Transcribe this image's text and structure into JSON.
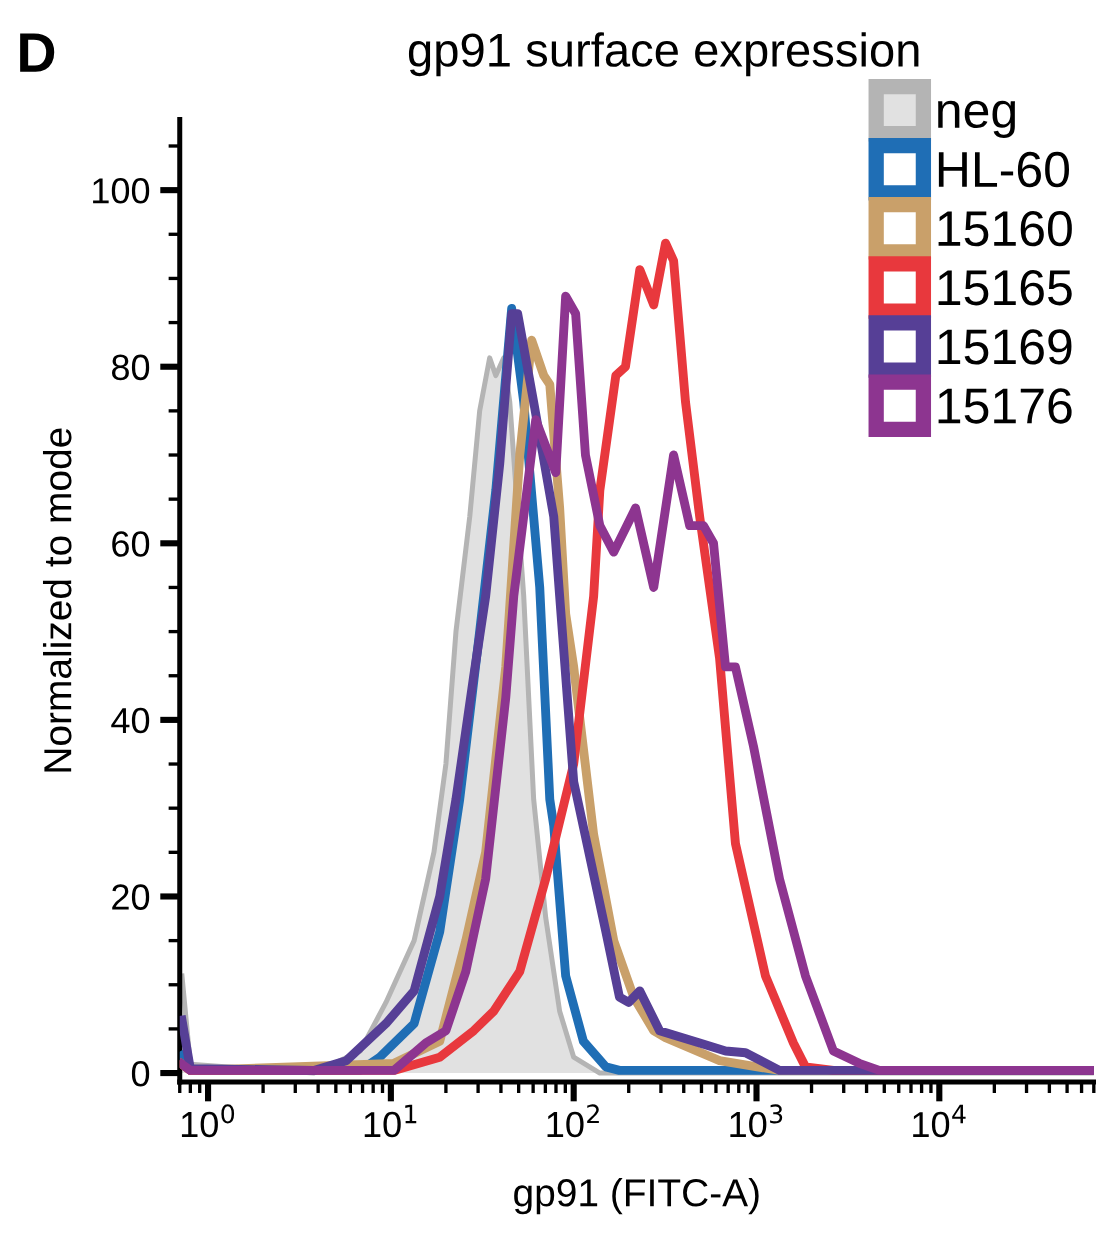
{
  "chart_data": {
    "type": "line",
    "title": "gp91 surface expression",
    "xlabel": "gp91 (FITC-A)",
    "ylabel": "Normalized to mode",
    "annotations": [
      "D"
    ],
    "log": "x",
    "grid": false,
    "legend": "top right",
    "marker": "none",
    "line_style": "solid",
    "xlim": [
      0.7,
      70000
    ],
    "xticks": [
      {
        "value": 1,
        "label": "10$^{0}$"
      },
      {
        "value": 10,
        "label": "10$^{1}$"
      },
      {
        "value": 100,
        "label": "10$^{2}$"
      },
      {
        "value": 1000,
        "label": "10$^{3}$"
      },
      {
        "value": 10000,
        "label": "10$^{4}$"
      }
    ],
    "ylim": [
      -1,
      108
    ],
    "yticks": [
      0,
      20,
      40,
      60,
      80,
      100
    ],
    "series": [
      {
        "name": "neg",
        "type": "area",
        "color": "#b4b4b4",
        "x": [
          0.72,
          0.8,
          3.79,
          6.8,
          9.4,
          13.4,
          17.2,
          20,
          22.7,
          27,
          30.6,
          34.7,
          37.5,
          41.4,
          44.7,
          53.3,
          60.4,
          70.3,
          83.8,
          100,
          139,
          70000
        ],
        "values": [
          11,
          1,
          0,
          2.5,
          8,
          15,
          25,
          35,
          50,
          63,
          75,
          81,
          79,
          81,
          76,
          54,
          31,
          17.6,
          7,
          1.8,
          0,
          0
        ]
      },
      {
        "name": "HL-60",
        "color": "#1f6eb5",
        "x": [
          0.72,
          0.8,
          6.8,
          8.7,
          13.4,
          18.5,
          23.8,
          30.6,
          37.5,
          45.8,
          53.3,
          65.2,
          74,
          77.8,
          90.4,
          113,
          150,
          178,
          70000
        ],
        "values": [
          2,
          0.3,
          0.3,
          1.8,
          5.6,
          16,
          31,
          50,
          66,
          86.6,
          76,
          55,
          31,
          28,
          11,
          3.6,
          0.7,
          0.3,
          0.3
        ]
      },
      {
        "name": "15160",
        "color": "#c9a06a",
        "x": [
          0.72,
          0.8,
          10.4,
          18.5,
          25.7,
          33,
          42.5,
          50.7,
          58.9,
          68.6,
          74,
          83.8,
          90.4,
          100,
          128.6,
          165.6,
          213,
          274,
          318,
          628,
          1336,
          70000
        ],
        "values": [
          1,
          0.3,
          1.1,
          3.6,
          15,
          25,
          46,
          70,
          83,
          79,
          78,
          64,
          52,
          46,
          27,
          15,
          8.6,
          4.8,
          4,
          1.4,
          0.3,
          0.3
        ]
      },
      {
        "name": "15165",
        "color": "#e8383d",
        "x": [
          0.72,
          0.8,
          10.4,
          18.5,
          28.4,
          36.5,
          50.7,
          70.3,
          100,
          128.6,
          139,
          170,
          192,
          230,
          274,
          318,
          352,
          409,
          489,
          628,
          767,
          1120,
          1592,
          1853,
          2635,
          70000
        ],
        "values": [
          1,
          0.3,
          0.3,
          1.8,
          4.8,
          7,
          11.5,
          22,
          35,
          54,
          66,
          79,
          80,
          91,
          87,
          94,
          92,
          76,
          63,
          47,
          26,
          11,
          3.4,
          0.7,
          0.3,
          0.3
        ]
      },
      {
        "name": "15169",
        "color": "#563f96",
        "x": [
          0.72,
          0.8,
          3.79,
          5.7,
          9.4,
          13.4,
          18.5,
          22.7,
          28.4,
          33,
          39.4,
          45.8,
          49.4,
          60.4,
          77.8,
          83.8,
          100,
          150,
          178,
          200,
          230,
          295,
          489,
          677,
          871,
          1336,
          70000
        ],
        "values": [
          6,
          0.5,
          0.3,
          1.4,
          5.6,
          9.3,
          20,
          31,
          45,
          54,
          69,
          86,
          86,
          76,
          63,
          54,
          33,
          16,
          8.6,
          8,
          9.3,
          4.8,
          3.4,
          2.5,
          2.3,
          0.3,
          0.3
        ]
      },
      {
        "name": "15176",
        "color": "#8d3590",
        "x": [
          0.72,
          0.8,
          10.4,
          15.5,
          20,
          25.7,
          33,
          42.5,
          47,
          62,
          79.8,
          90.4,
          102.5,
          116,
          139,
          165.6,
          218,
          274,
          352,
          431,
          513,
          582,
          677,
          767,
          963,
          1336,
          1853,
          2635,
          3650,
          4700,
          70000
        ],
        "values": [
          1,
          0.3,
          0.3,
          3.4,
          4.8,
          11.5,
          22,
          42.5,
          54,
          74,
          68,
          88,
          86,
          70,
          62,
          59,
          64,
          55,
          70,
          62,
          62,
          60,
          46,
          46,
          37,
          22,
          11,
          2.5,
          1.1,
          0.3,
          0.3
        ]
      }
    ]
  }
}
